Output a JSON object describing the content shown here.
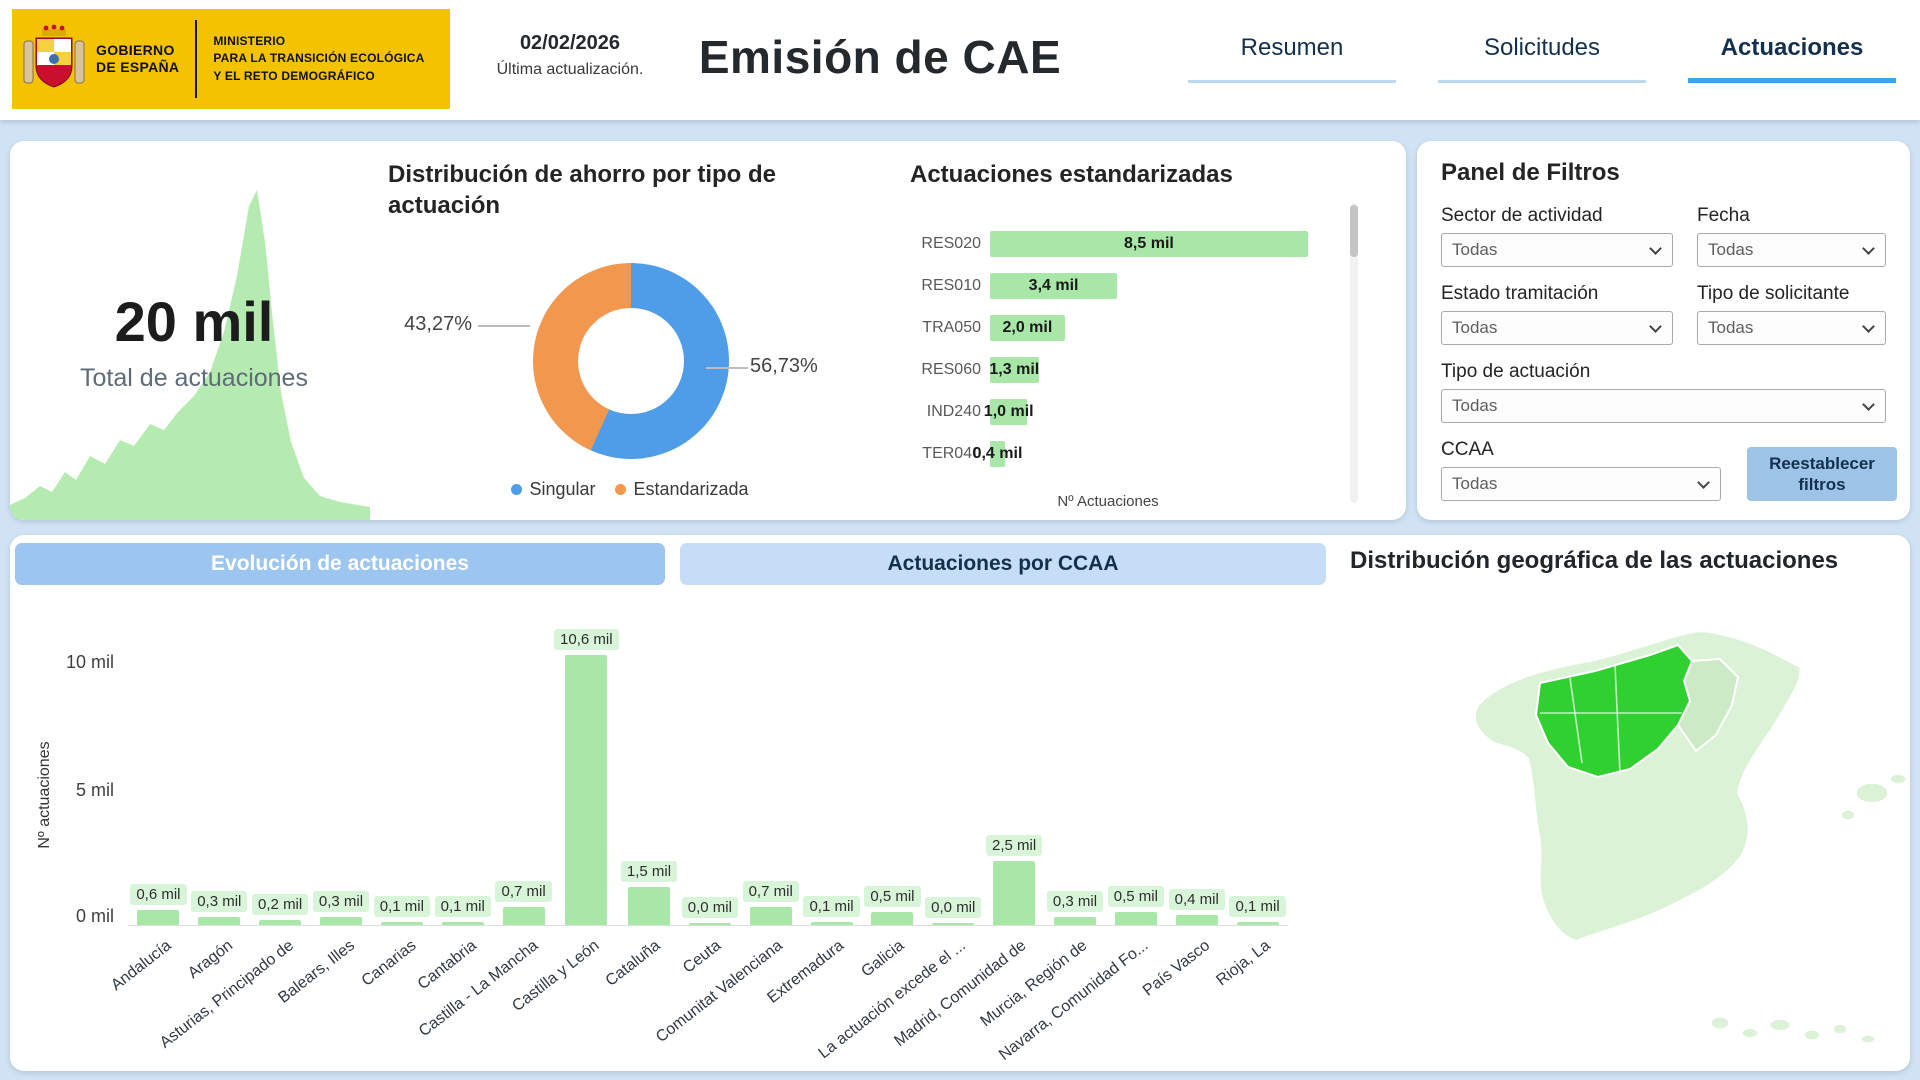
{
  "colors": {
    "page_bg": "#cfe3f4",
    "logo_yellow": "#f3c200",
    "accent_blue": "#4f9de8",
    "accent_orange": "#f2984e",
    "bar_green": "#a8e7a8",
    "pill_green": "#d9f5d9",
    "map_green_light": "#dcf2d6",
    "map_green_bright": "#2fd02f",
    "tab_active_underline": "#3ea2ee",
    "reset_button_blue": "#9dc3e6"
  },
  "header": {
    "logo": {
      "gobierno_line1": "GOBIERNO",
      "gobierno_line2": "DE ESPAÑA",
      "ministerio_line1": "MINISTERIO",
      "ministerio_line2": "PARA LA TRANSICIÓN ECOLÓGICA",
      "ministerio_line3": "Y EL RETO DEMOGRÁFICO"
    },
    "date": "02/02/2026",
    "date_caption": "Última actualización.",
    "title": "Emisión de CAE",
    "tabs": [
      {
        "label": "Resumen",
        "active": false
      },
      {
        "label": "Solicitudes",
        "active": false
      },
      {
        "label": "Actuaciones",
        "active": true
      }
    ]
  },
  "kpi": {
    "value": "20 mil",
    "label": "Total de actuaciones"
  },
  "filters": {
    "title": "Panel de Filtros",
    "fields": [
      {
        "label": "Sector de actividad",
        "value": "Todas"
      },
      {
        "label": "Fecha",
        "value": "Todas"
      },
      {
        "label": "Estado tramitación",
        "value": "Todas"
      },
      {
        "label": "Tipo de solicitante",
        "value": "Todas"
      },
      {
        "label": "Tipo de actuación",
        "value": "Todas"
      },
      {
        "label": "CCAA",
        "value": "Todas"
      }
    ],
    "reset_button": "Reestablecer filtros"
  },
  "bottom": {
    "tab_evolucion": "Evolución de actuaciones",
    "tab_ccaa": "Actuaciones por CCAA",
    "map_title": "Distribución geográfica de las actuaciones"
  },
  "chart_data": [
    {
      "type": "pie",
      "donut": true,
      "title": "Distribución de ahorro por tipo de actuación",
      "labels": [
        "Singular",
        "Estandarizada"
      ],
      "values": [
        56.73,
        43.27
      ],
      "value_labels": [
        "56,73%",
        "43,27%"
      ],
      "colors": [
        "#4f9de8",
        "#f2984e"
      ],
      "legend_position": "bottom"
    },
    {
      "type": "bar",
      "orientation": "horizontal",
      "title": "Actuaciones estandarizadas",
      "categories": [
        "RES020",
        "RES010",
        "TRA050",
        "RES060",
        "IND240",
        "TER040"
      ],
      "values": [
        8.5,
        3.4,
        2.0,
        1.3,
        1.0,
        0.4
      ],
      "value_labels": [
        "8,5 mil",
        "3,4 mil",
        "2,0 mil",
        "1,3 mil",
        "1,0 mil",
        "0,4 mil"
      ],
      "unit": "mil",
      "xlabel": "Nº Actuaciones"
    },
    {
      "type": "bar",
      "title": "Actuaciones por CCAA",
      "categories": [
        "Andalucía",
        "Aragón",
        "Asturias, Principado de",
        "Balears, Illes",
        "Canarias",
        "Cantabria",
        "Castilla - La Mancha",
        "Castilla y León",
        "Cataluña",
        "Ceuta",
        "Comunitat Valenciana",
        "Extremadura",
        "Galicia",
        "La actuación excede el ...",
        "Madrid, Comunidad de",
        "Murcia, Región de",
        "Navarra, Comunidad Fo...",
        "País Vasco",
        "Rioja, La"
      ],
      "values": [
        0.6,
        0.3,
        0.2,
        0.3,
        0.1,
        0.1,
        0.7,
        10.6,
        1.5,
        0.0,
        0.7,
        0.1,
        0.5,
        0.0,
        2.5,
        0.3,
        0.5,
        0.4,
        0.1
      ],
      "value_labels": [
        "0,6 mil",
        "0,3 mil",
        "0,2 mil",
        "0,3 mil",
        "0,1 mil",
        "0,1 mil",
        "0,7 mil",
        "10,6 mil",
        "1,5 mil",
        "0,0 mil",
        "0,7 mil",
        "0,1 mil",
        "0,5 mil",
        "0,0 mil",
        "2,5 mil",
        "0,3 mil",
        "0,5 mil",
        "0,4 mil",
        "0,1 mil"
      ],
      "unit": "mil",
      "ylabel": "Nº actuaciones",
      "yticks": [
        "10 mil",
        "5 mil",
        "0 mil"
      ],
      "ylim": [
        0,
        11
      ]
    },
    {
      "type": "area",
      "title": "Total de actuaciones",
      "kpi": "20 mil"
    }
  ]
}
